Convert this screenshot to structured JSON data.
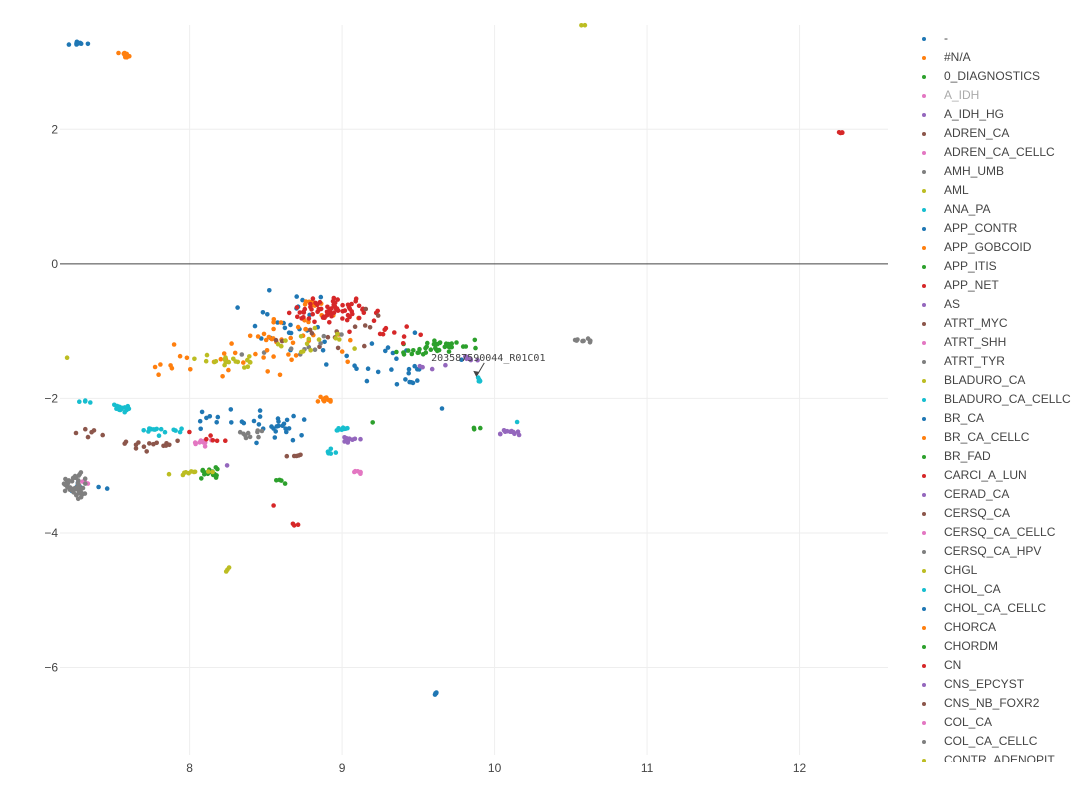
{
  "chart_data": {
    "type": "scatter",
    "title": "",
    "xlabel": "",
    "ylabel": "",
    "xlim": [
      7.15,
      12.58
    ],
    "ylim": [
      -7.3,
      3.55
    ],
    "x_ticks": [
      "8",
      "9",
      "10",
      "11",
      "12"
    ],
    "y_ticks": [
      "2",
      "0",
      "−2",
      "−4",
      "−6"
    ],
    "grid": true,
    "zero_line": true,
    "legend_position": "right",
    "annotation": {
      "text": "203587590044_R01C01",
      "x": 9.88,
      "y": -1.68
    },
    "series": [
      {
        "name": "-",
        "color": "#1f77b4",
        "clusters": [
          [
            7.25,
            3.27,
            0.1,
            0.03,
            8
          ],
          [
            9.62,
            -6.38,
            0.02,
            0.02,
            4
          ],
          [
            8.6,
            -2.45,
            0.25,
            0.2,
            20
          ],
          [
            8.6,
            -0.85,
            0.25,
            0.35,
            25
          ],
          [
            9.3,
            -1.4,
            0.3,
            0.3,
            20
          ],
          [
            7.3,
            -3.3,
            0.15,
            0.1,
            6
          ]
        ]
      },
      {
        "name": "#N/A",
        "color": "#ff7f0e",
        "clusters": [
          [
            7.58,
            3.1,
            0.04,
            0.03,
            10
          ],
          [
            8.9,
            -2.05,
            0.05,
            0.05,
            10
          ],
          [
            8.7,
            -1.0,
            0.3,
            0.25,
            30
          ],
          [
            8.1,
            -1.4,
            0.3,
            0.2,
            12
          ]
        ]
      },
      {
        "name": "0_DIAGNOSTICS",
        "color": "#2ca02c",
        "clusters": [
          [
            9.65,
            -1.22,
            0.18,
            0.08,
            30
          ],
          [
            8.13,
            -3.1,
            0.05,
            0.08,
            15
          ],
          [
            8.6,
            -3.22,
            0.03,
            0.03,
            4
          ],
          [
            9.9,
            -2.45,
            0.05,
            0.03,
            3
          ]
        ]
      },
      {
        "name": "A_IDH",
        "color": "#e377c2",
        "hidden": true,
        "clusters": []
      },
      {
        "name": "A_IDH_HG",
        "color": "#9467bd",
        "clusters": [
          [
            10.1,
            -2.5,
            0.1,
            0.03,
            12
          ],
          [
            9.05,
            -2.62,
            0.05,
            0.04,
            10
          ],
          [
            9.85,
            -1.4,
            0.06,
            0.05,
            8
          ]
        ]
      },
      {
        "name": "ADREN_CA",
        "color": "#8c564b",
        "clusters": [
          [
            7.7,
            -2.7,
            0.15,
            0.08,
            15
          ],
          [
            8.7,
            -2.85,
            0.04,
            0.03,
            5
          ],
          [
            7.35,
            -2.5,
            0.1,
            0.1,
            6
          ]
        ]
      },
      {
        "name": "ADREN_CA_CELLC",
        "color": "#e377c2",
        "clusters": [
          [
            8.1,
            -2.65,
            0.05,
            0.05,
            10
          ],
          [
            9.1,
            -3.1,
            0.02,
            0.02,
            3
          ],
          [
            7.3,
            -3.25,
            0.05,
            0.02,
            5
          ]
        ]
      },
      {
        "name": "AMH_UMB",
        "color": "#7f7f7f",
        "clusters": [
          [
            7.25,
            -3.3,
            0.06,
            0.15,
            50
          ],
          [
            10.6,
            -1.15,
            0.05,
            0.03,
            8
          ],
          [
            8.4,
            -2.5,
            0.1,
            0.08,
            10
          ]
        ]
      },
      {
        "name": "AML",
        "color": "#bcbd22",
        "clusters": [
          [
            10.6,
            3.55,
            0.03,
            0.02,
            8
          ],
          [
            8.25,
            -1.45,
            0.15,
            0.06,
            20
          ],
          [
            8.0,
            -3.1,
            0.15,
            0.05,
            10
          ],
          [
            8.25,
            -4.55,
            0.02,
            0.04,
            3
          ]
        ]
      },
      {
        "name": "ANA_PA",
        "color": "#17becf",
        "clusters": [
          [
            7.55,
            -2.15,
            0.05,
            0.05,
            15
          ],
          [
            7.8,
            -2.5,
            0.12,
            0.06,
            15
          ],
          [
            9.0,
            -2.45,
            0.04,
            0.04,
            8
          ],
          [
            8.9,
            -2.8,
            0.06,
            0.04,
            6
          ],
          [
            7.3,
            -2.05,
            0.05,
            0.02,
            4
          ]
        ]
      },
      {
        "name": "APP_CONTR",
        "color": "#1f77b4",
        "clusters": [
          [
            9.45,
            -1.7,
            0.15,
            0.1,
            8
          ],
          [
            8.2,
            -2.3,
            0.3,
            0.2,
            15
          ]
        ]
      },
      {
        "name": "APP_GOBCOID",
        "color": "#ff7f0e",
        "clusters": [
          [
            8.8,
            -0.6,
            0.05,
            0.03,
            10
          ],
          [
            7.8,
            -1.55,
            0.1,
            0.1,
            5
          ]
        ]
      },
      {
        "name": "APP_ITIS",
        "color": "#2ca02c",
        "clusters": [
          [
            9.45,
            -1.3,
            0.1,
            0.05,
            10
          ]
        ]
      },
      {
        "name": "APP_NET",
        "color": "#d62728",
        "clusters": [
          [
            12.28,
            1.95,
            0.02,
            0.01,
            5
          ],
          [
            8.95,
            -0.7,
            0.25,
            0.15,
            70
          ],
          [
            8.7,
            -3.88,
            0.02,
            0.02,
            3
          ],
          [
            8.55,
            -3.6,
            0.01,
            0.01,
            1
          ],
          [
            8.15,
            -2.6,
            0.1,
            0.1,
            6
          ]
        ]
      },
      {
        "name": "AS",
        "color": "#9467bd",
        "clusters": [
          [
            9.6,
            -1.55,
            0.1,
            0.05,
            4
          ]
        ]
      },
      {
        "name": "ATRT_MYC",
        "color": "#8c564b",
        "clusters": [
          [
            8.9,
            -1.0,
            0.3,
            0.25,
            15
          ]
        ]
      },
      {
        "name": "ATRT_SHH",
        "color": "#e377c2",
        "clusters": [
          [
            9.1,
            -3.1,
            0.02,
            0.02,
            2
          ]
        ]
      },
      {
        "name": "ATRT_TYR",
        "color": "#7f7f7f",
        "clusters": [
          [
            8.7,
            -1.2,
            0.25,
            0.2,
            10
          ]
        ]
      },
      {
        "name": "BLADURO_CA",
        "color": "#bcbd22",
        "clusters": [
          [
            8.8,
            -1.2,
            0.3,
            0.2,
            15
          ],
          [
            7.2,
            -1.4,
            0.01,
            0.01,
            1
          ]
        ]
      },
      {
        "name": "BLADURO_CA_CELLC",
        "color": "#17becf",
        "clusters": [
          [
            9.9,
            -1.75,
            0.03,
            0.04,
            5
          ],
          [
            10.15,
            -2.35,
            0.01,
            0.01,
            1
          ]
        ]
      },
      {
        "name": "BR_CA",
        "color": "#1f77b4",
        "clusters": [
          [
            9.65,
            -2.15,
            0.01,
            0.01,
            1
          ]
        ]
      },
      {
        "name": "BR_CA_CELLC",
        "color": "#ff7f0e",
        "clusters": [
          [
            8.6,
            -1.3,
            0.3,
            0.25,
            10
          ]
        ]
      },
      {
        "name": "BR_FAD",
        "color": "#2ca02c",
        "clusters": [
          [
            9.2,
            -2.35,
            0.01,
            0.01,
            1
          ]
        ]
      },
      {
        "name": "CARCI_A_LUN",
        "color": "#d62728",
        "clusters": [
          [
            9.3,
            -1.0,
            0.25,
            0.2,
            10
          ]
        ]
      },
      {
        "name": "CERAD_CA",
        "color": "#9467bd",
        "clusters": [
          [
            8.25,
            -3.0,
            0.01,
            0.01,
            1
          ]
        ]
      },
      {
        "name": "CERSQ_CA",
        "color": "#8c564b",
        "clusters": []
      },
      {
        "name": "CERSQ_CA_CELLC",
        "color": "#e377c2",
        "clusters": []
      },
      {
        "name": "CERSQ_CA_HPV",
        "color": "#7f7f7f",
        "clusters": []
      },
      {
        "name": "CHGL",
        "color": "#bcbd22",
        "clusters": []
      },
      {
        "name": "CHOL_CA",
        "color": "#17becf",
        "clusters": []
      },
      {
        "name": "CHOL_CA_CELLC",
        "color": "#1f77b4",
        "clusters": []
      },
      {
        "name": "CHORCA",
        "color": "#ff7f0e",
        "clusters": []
      },
      {
        "name": "CHORDM",
        "color": "#2ca02c",
        "clusters": []
      },
      {
        "name": "CN",
        "color": "#d62728",
        "clusters": []
      },
      {
        "name": "CNS_EPCYST",
        "color": "#9467bd",
        "clusters": []
      },
      {
        "name": "CNS_NB_FOXR2",
        "color": "#8c564b",
        "clusters": []
      },
      {
        "name": "COL_CA",
        "color": "#e377c2",
        "clusters": []
      },
      {
        "name": "COL_CA_CELLC",
        "color": "#7f7f7f",
        "clusters": []
      },
      {
        "name": "CONTR_ADENOPIT",
        "color": "#bcbd22",
        "clusters": []
      }
    ]
  }
}
